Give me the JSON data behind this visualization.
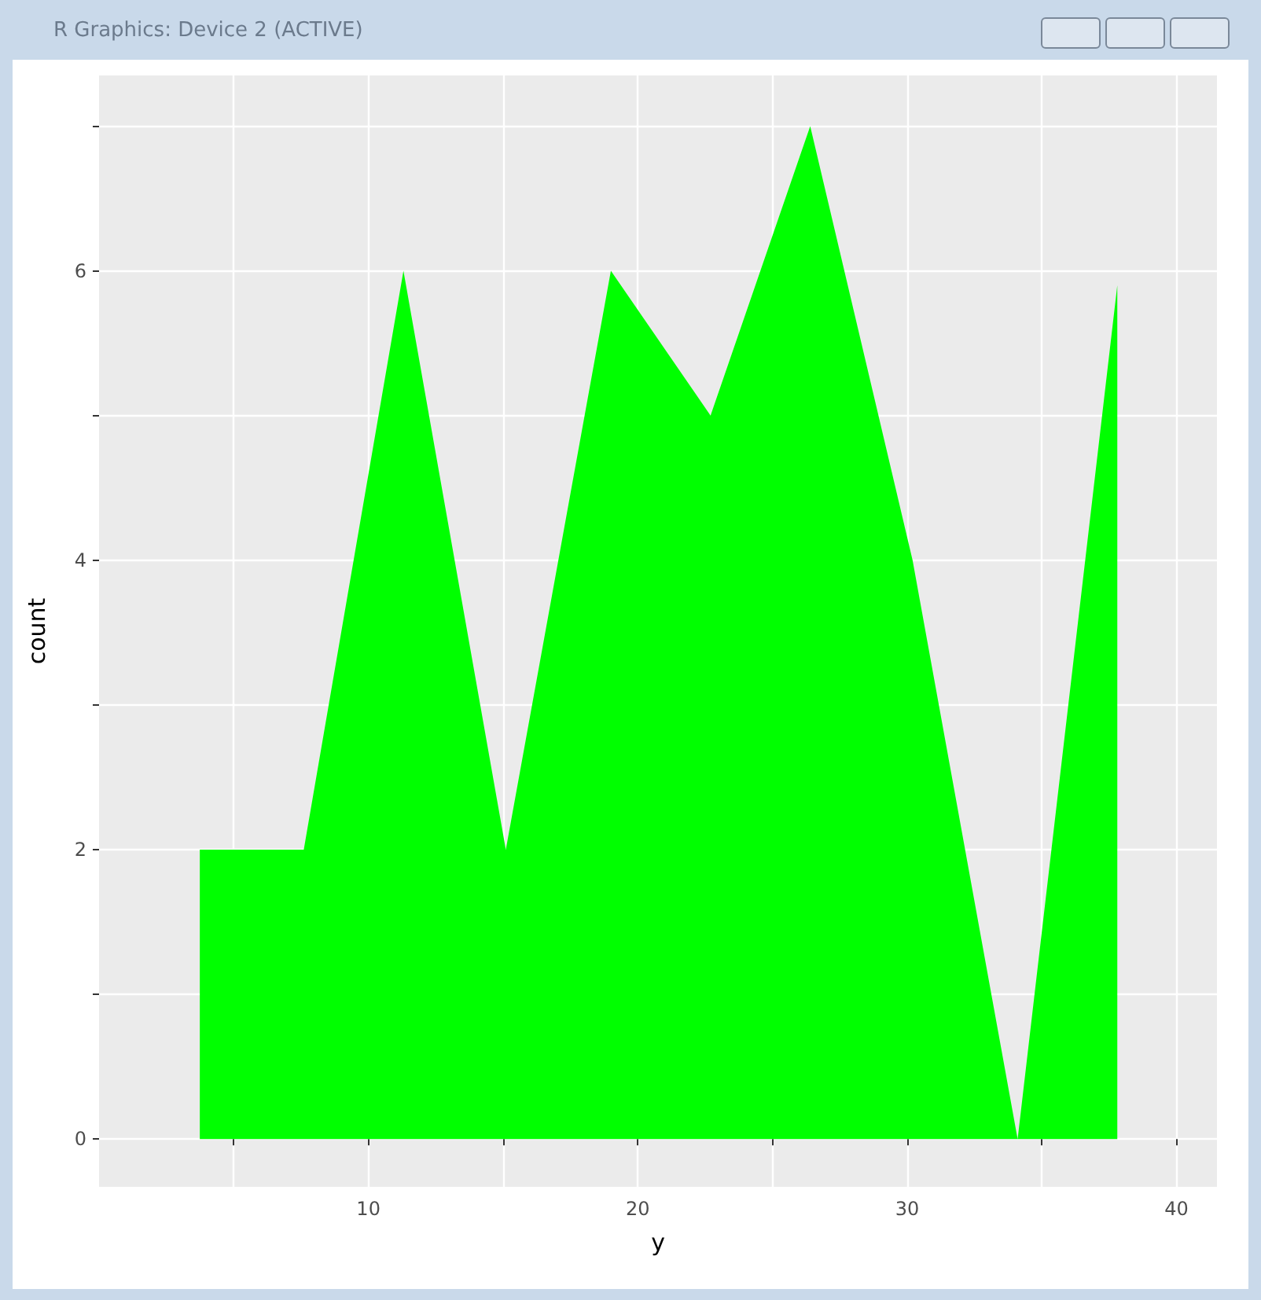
{
  "chart_data": {
    "type": "area",
    "title": "R Graphics: Device 2 (ACTIVE)",
    "xlabel": "y",
    "ylabel": "count",
    "x": [
      3.74,
      7.6,
      11.3,
      15.1,
      19.0,
      22.7,
      26.4,
      30.2,
      34.1,
      37.8
    ],
    "series": [
      {
        "color": "#00ff00",
        "values": [
          2,
          2,
          6,
          2,
          6,
          5,
          7,
          4,
          0,
          5.9
        ]
      }
    ],
    "xlim": [
      0,
      41.5
    ],
    "ylim": [
      -0.33,
      7.35
    ],
    "xticks": [
      {
        "value": 5,
        "label": null
      },
      10,
      {
        "value": 15,
        "label": null
      },
      20,
      {
        "value": 25,
        "label": null
      },
      30,
      {
        "value": 35,
        "label": null
      },
      40
    ],
    "yticks": [
      0,
      {
        "value": 1,
        "label": null
      },
      2,
      {
        "value": 3,
        "label": null
      },
      4,
      {
        "value": 5,
        "label": null
      },
      6,
      {
        "value": 7,
        "label": null
      }
    ],
    "grid": true,
    "marker": "none"
  }
}
